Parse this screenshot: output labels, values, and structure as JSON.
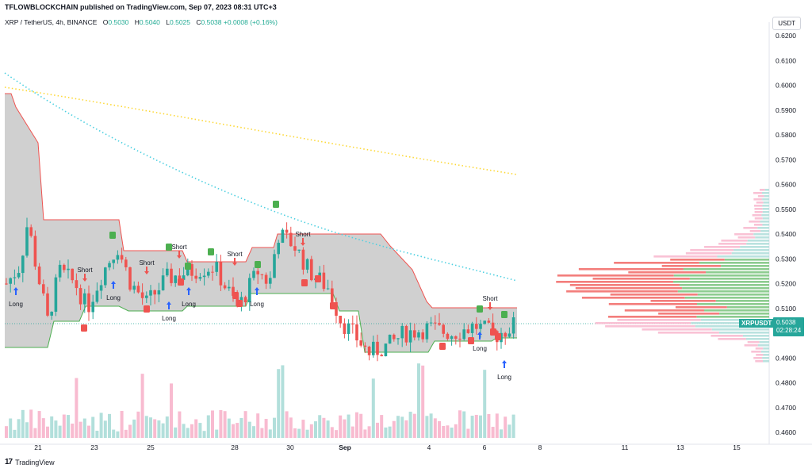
{
  "header": {
    "publisher": "TFLOWBLOCKCHAIN published on TradingView.com, Sep 07, 2023 08:31 UTC+3"
  },
  "legend": {
    "symbol": "XRP / TetherUS, 4h, BINANCE",
    "o_label": "O",
    "o_value": "0.5030",
    "h_label": "H",
    "h_value": "0.5040",
    "l_label": "L",
    "l_value": "0.5025",
    "c_label": "C",
    "c_value": "0.5038",
    "change": "+0.0008 (+0.16%)"
  },
  "currency_button": "USDT",
  "price_tag": {
    "symbol": "XRPUSDT",
    "price": "0.5038",
    "countdown": "02:28:24"
  },
  "footer": {
    "brand": "TradingView"
  },
  "colors": {
    "up": "#26a69a",
    "down": "#ef5350",
    "up_volume": "#b2dfdb",
    "down_volume": "#f8bbd0",
    "band_fill": "#c8c8c8",
    "ma_fast": "#4dd0e1",
    "ma_slow": "#fdd835"
  },
  "chart_data": {
    "type": "candlestick",
    "title": "",
    "y_axis": {
      "ticks": [
        "0.6200",
        "0.6100",
        "0.6000",
        "0.5900",
        "0.5800",
        "0.5700",
        "0.5600",
        "0.5500",
        "0.5400",
        "0.5300",
        "0.5200",
        "0.5100",
        "0.5000",
        "0.4900",
        "0.4800",
        "0.4700",
        "0.4600"
      ],
      "ylim": [
        0.455,
        0.625
      ]
    },
    "x_axis": {
      "ticks": [
        "21",
        "23",
        "25",
        "28",
        "30",
        "Sep",
        "4",
        "6",
        "8",
        "11",
        "13",
        "15"
      ]
    },
    "signals": [
      {
        "label": "Long",
        "price": 0.506
      },
      {
        "label": "Short",
        "price": 0.53
      },
      {
        "label": "Long",
        "price": 0.512
      },
      {
        "label": "Short",
        "price": 0.532
      },
      {
        "label": "Short",
        "price": 0.535
      },
      {
        "label": "Long",
        "price": 0.51
      },
      {
        "label": "Long",
        "price": 0.502
      },
      {
        "label": "Short",
        "price": 0.531
      },
      {
        "label": "Long",
        "price": 0.51
      },
      {
        "label": "Short",
        "price": 0.542
      },
      {
        "label": "Short",
        "price": 0.513
      },
      {
        "label": "Long",
        "price": 0.495
      },
      {
        "label": "Long",
        "price": 0.487
      }
    ]
  }
}
